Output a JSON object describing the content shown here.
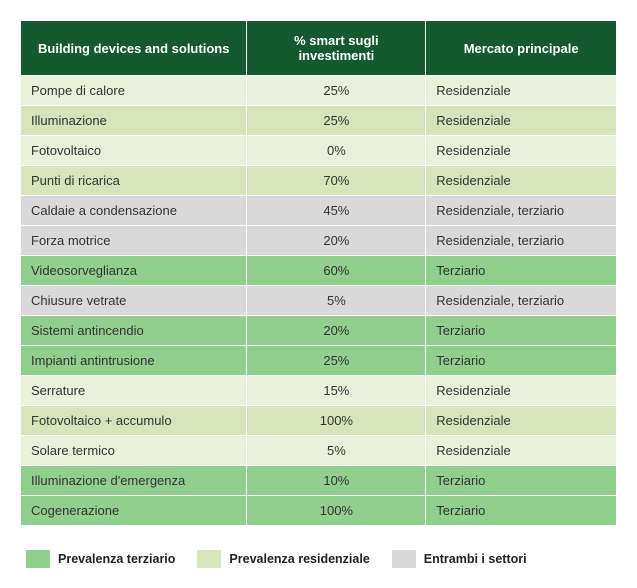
{
  "table": {
    "headers": {
      "devices": "Building devices and solutions",
      "percent": "% smart sugli investimenti",
      "market": "Mercato principale"
    },
    "colors": {
      "header_bg": "#14592f",
      "header_text": "#ffffff",
      "res_light": "#eaf1da",
      "res_med": "#d5e4b9",
      "ter": "#91cf8e",
      "both": "#d9d9d9",
      "text": "#333333"
    },
    "rows": [
      {
        "device": "Pompe di calore",
        "percent": "25%",
        "market": "Residenziale",
        "category": "res",
        "stripe": "light"
      },
      {
        "device": "Illuminazione",
        "percent": "25%",
        "market": "Residenziale",
        "category": "res",
        "stripe": "med"
      },
      {
        "device": "Fotovoltaico",
        "percent": "0%",
        "market": "Residenziale",
        "category": "res",
        "stripe": "light"
      },
      {
        "device": "Punti di ricarica",
        "percent": "70%",
        "market": "Residenziale",
        "category": "res",
        "stripe": "med"
      },
      {
        "device": "Caldaie a condensazione",
        "percent": "45%",
        "market": "Residenziale, terziario",
        "category": "both",
        "stripe": ""
      },
      {
        "device": "Forza motrice",
        "percent": "20%",
        "market": "Residenziale, terziario",
        "category": "both",
        "stripe": ""
      },
      {
        "device": "Videosorveglianza",
        "percent": "60%",
        "market": "Terziario",
        "category": "ter",
        "stripe": ""
      },
      {
        "device": "Chiusure vetrate",
        "percent": "5%",
        "market": "Residenziale, terziario",
        "category": "both",
        "stripe": ""
      },
      {
        "device": "Sistemi antincendio",
        "percent": "20%",
        "market": "Terziario",
        "category": "ter",
        "stripe": ""
      },
      {
        "device": "Impianti antintrusione",
        "percent": "25%",
        "market": "Terziario",
        "category": "ter",
        "stripe": ""
      },
      {
        "device": "Serrature",
        "percent": "15%",
        "market": "Residenziale",
        "category": "res",
        "stripe": "light"
      },
      {
        "device": "Fotovoltaico + accumulo",
        "percent": "100%",
        "market": "Residenziale",
        "category": "res",
        "stripe": "med"
      },
      {
        "device": "Solare termico",
        "percent": "5%",
        "market": "Residenziale",
        "category": "res",
        "stripe": "light"
      },
      {
        "device": "Illuminazione d'emergenza",
        "percent": "10%",
        "market": "Terziario",
        "category": "ter",
        "stripe": ""
      },
      {
        "device": "Cogenerazione",
        "percent": "100%",
        "market": "Terziario",
        "category": "ter",
        "stripe": ""
      }
    ]
  },
  "legend": {
    "items": [
      {
        "label": "Prevalenza terziario",
        "color": "#91cf8e"
      },
      {
        "label": "Prevalenza residenziale",
        "color": "#d5e4b9"
      },
      {
        "label": "Entrambi i settori",
        "color": "#d9d9d9"
      }
    ]
  }
}
